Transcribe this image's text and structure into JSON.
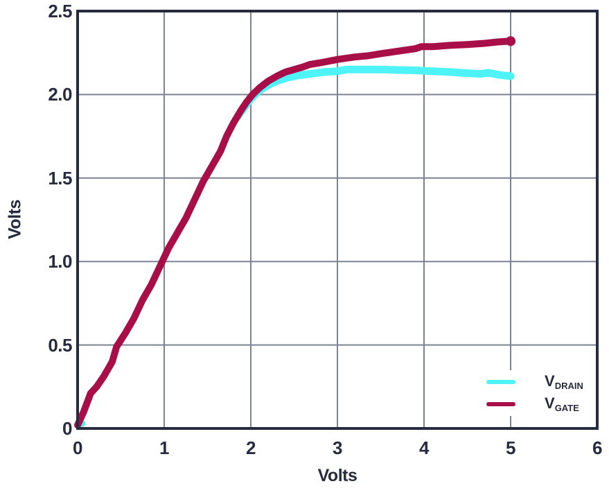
{
  "colors": {
    "background": "#ffffff",
    "frame": "#262b3d",
    "grid": "#7b8294",
    "text": "#262b3d",
    "drain": "#4df3f7",
    "gate": "#a80e48",
    "legend_bg": "#ffffff"
  },
  "axes": {
    "x_title": "Volts",
    "y_title": "Volts",
    "x_tick_labels": [
      "0",
      "1",
      "2",
      "3",
      "4",
      "5",
      "6"
    ],
    "y_tick_labels": [
      "0",
      "0.5",
      "1.0",
      "1.5",
      "2.0",
      "2.5"
    ]
  },
  "legend": {
    "position": "lower right",
    "items": [
      {
        "main": "V",
        "sub": "DRAIN",
        "series": "drain"
      },
      {
        "main": "V",
        "sub": "GATE",
        "series": "gate"
      }
    ]
  },
  "chart_data": {
    "type": "line",
    "title": "",
    "xlabel": "Volts",
    "ylabel": "Volts",
    "xlim": [
      0,
      6
    ],
    "ylim": [
      0,
      2.5
    ],
    "x_ticks": [
      0,
      1,
      2,
      3,
      4,
      5,
      6
    ],
    "y_ticks": [
      0,
      0.5,
      1.0,
      1.5,
      2.0,
      2.5
    ],
    "grid": true,
    "legend_position": "lower right",
    "series": [
      {
        "name": "V_DRAIN",
        "color_key": "drain",
        "stroke_width": 11,
        "points": [
          [
            1.85,
            1.87
          ],
          [
            1.92,
            1.92
          ],
          [
            2.0,
            1.975
          ],
          [
            2.08,
            2.015
          ],
          [
            2.16,
            2.045
          ],
          [
            2.25,
            2.07
          ],
          [
            2.35,
            2.09
          ],
          [
            2.45,
            2.105
          ],
          [
            2.55,
            2.115
          ],
          [
            2.7,
            2.125
          ],
          [
            2.85,
            2.135
          ],
          [
            3.0,
            2.14
          ],
          [
            3.1,
            2.15
          ],
          [
            3.3,
            2.15
          ],
          [
            3.5,
            2.15
          ],
          [
            3.7,
            2.147
          ],
          [
            3.9,
            2.145
          ],
          [
            4.1,
            2.14
          ],
          [
            4.3,
            2.135
          ],
          [
            4.5,
            2.128
          ],
          [
            4.65,
            2.124
          ],
          [
            4.75,
            2.13
          ],
          [
            4.88,
            2.117
          ],
          [
            5.0,
            2.11
          ]
        ],
        "markers": [
          {
            "x": 0.05,
            "y": 0.03,
            "r": 5
          }
        ]
      },
      {
        "name": "V_GATE",
        "color_key": "gate",
        "stroke_width": 10,
        "points": [
          [
            0,
            0.02
          ],
          [
            0.07,
            0.1
          ],
          [
            0.15,
            0.21
          ],
          [
            0.22,
            0.25
          ],
          [
            0.3,
            0.31
          ],
          [
            0.4,
            0.4
          ],
          [
            0.45,
            0.49
          ],
          [
            0.55,
            0.57
          ],
          [
            0.65,
            0.66
          ],
          [
            0.75,
            0.77
          ],
          [
            0.85,
            0.86
          ],
          [
            0.95,
            0.97
          ],
          [
            1.05,
            1.08
          ],
          [
            1.15,
            1.17
          ],
          [
            1.25,
            1.26
          ],
          [
            1.35,
            1.37
          ],
          [
            1.45,
            1.48
          ],
          [
            1.55,
            1.57
          ],
          [
            1.65,
            1.66
          ],
          [
            1.72,
            1.75
          ],
          [
            1.8,
            1.83
          ],
          [
            1.88,
            1.9
          ],
          [
            1.95,
            1.955
          ],
          [
            2.02,
            2.0
          ],
          [
            2.1,
            2.04
          ],
          [
            2.2,
            2.08
          ],
          [
            2.3,
            2.11
          ],
          [
            2.4,
            2.135
          ],
          [
            2.5,
            2.15
          ],
          [
            2.6,
            2.165
          ],
          [
            2.68,
            2.18
          ],
          [
            2.8,
            2.19
          ],
          [
            3.0,
            2.21
          ],
          [
            3.2,
            2.225
          ],
          [
            3.35,
            2.232
          ],
          [
            3.5,
            2.245
          ],
          [
            3.7,
            2.26
          ],
          [
            3.9,
            2.275
          ],
          [
            3.97,
            2.287
          ],
          [
            4.1,
            2.287
          ],
          [
            4.3,
            2.295
          ],
          [
            4.5,
            2.3
          ],
          [
            4.7,
            2.307
          ],
          [
            4.85,
            2.315
          ],
          [
            5.0,
            2.32
          ]
        ],
        "markers": [
          {
            "x": 5.0,
            "y": 2.32,
            "r": 7
          }
        ]
      }
    ]
  }
}
